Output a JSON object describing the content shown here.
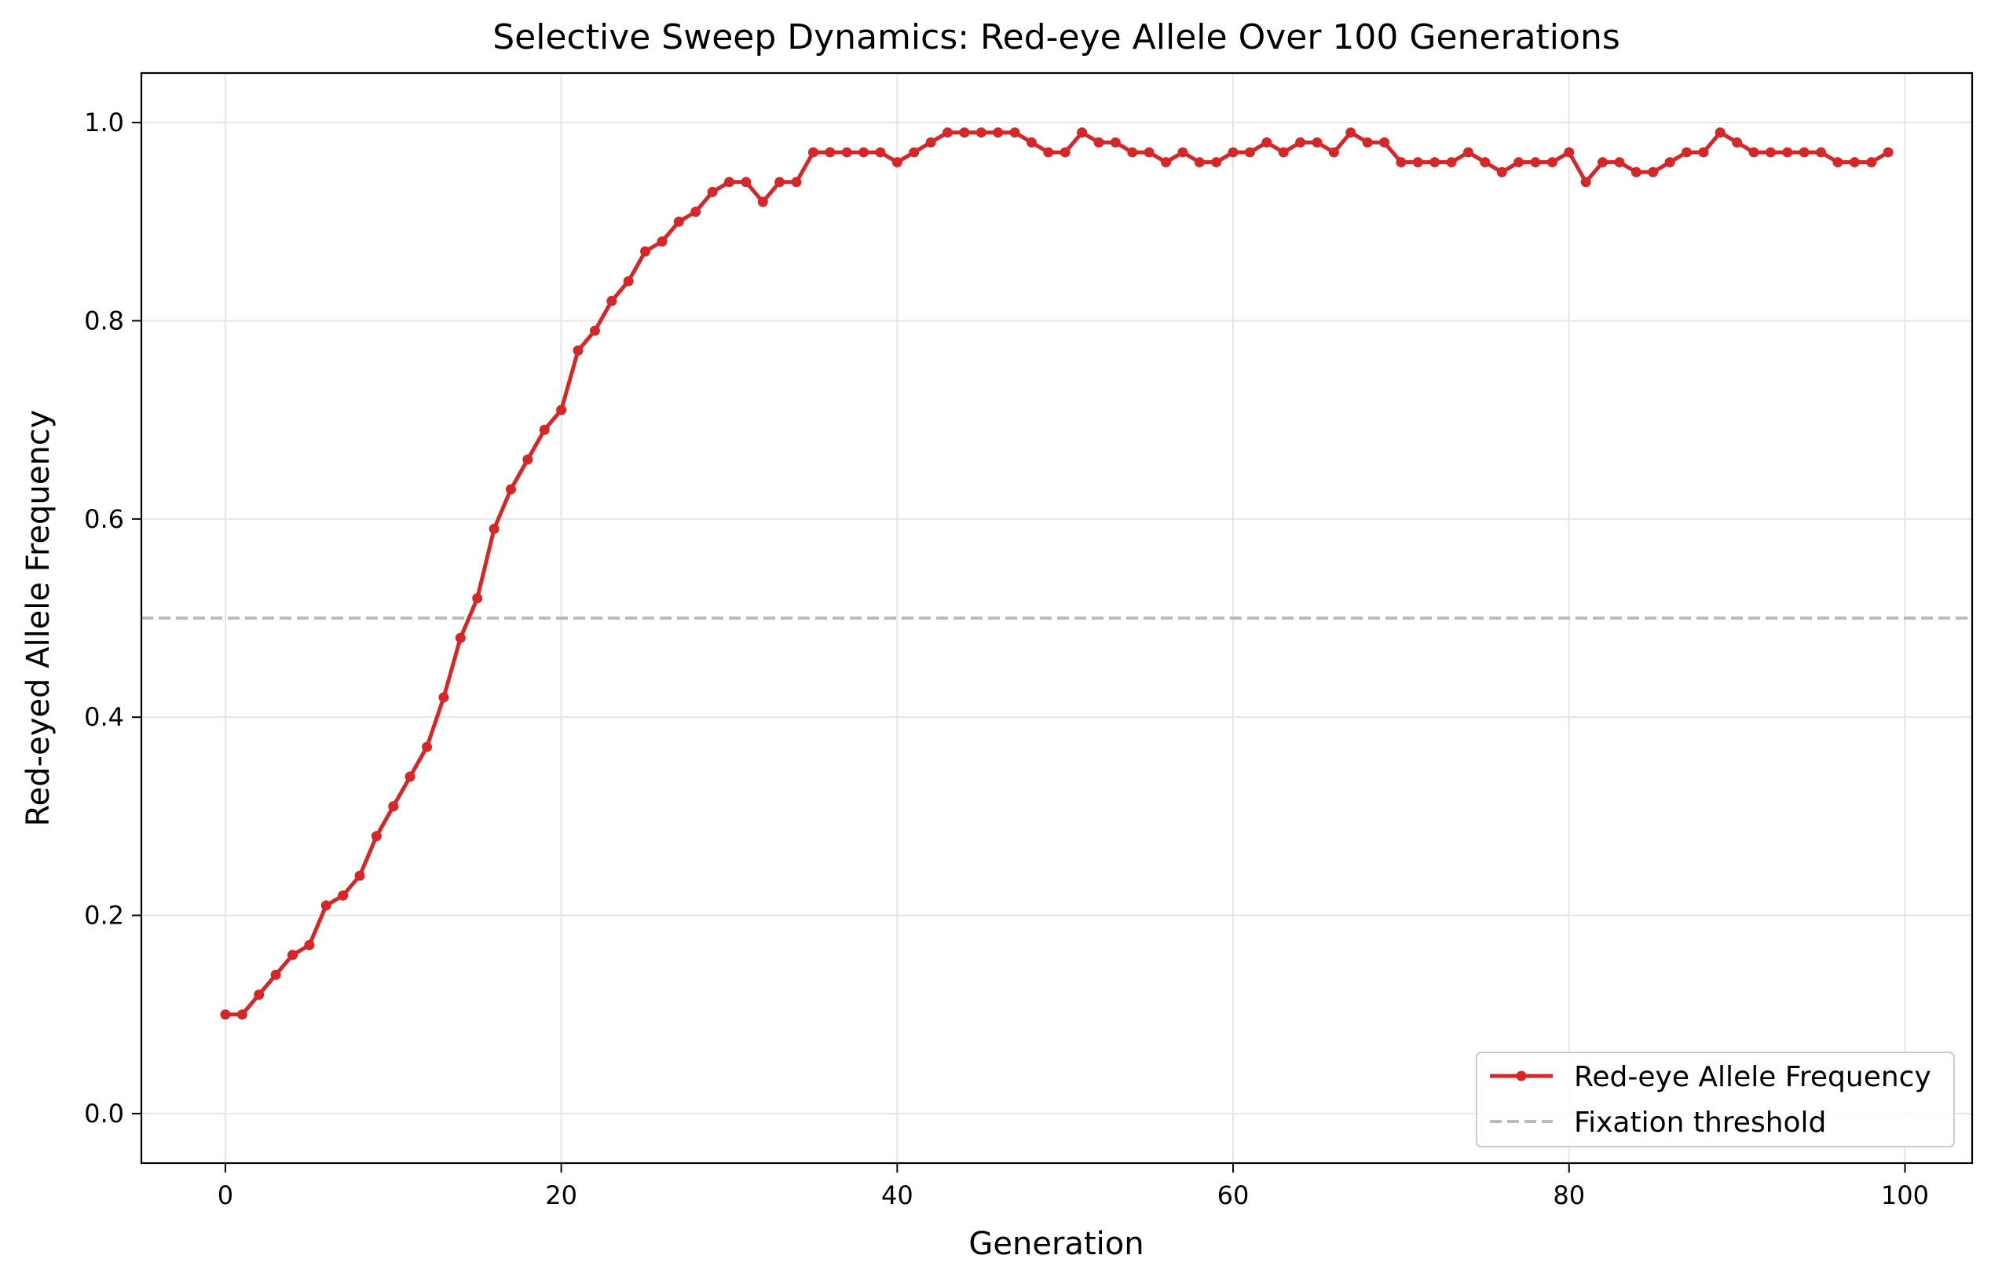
{
  "chart_data": {
    "type": "line",
    "title": "Selective Sweep Dynamics: Red-eye Allele Over 100 Generations",
    "xlabel": "Generation",
    "ylabel": "Red-eyed Allele Frequency",
    "xlim": [
      -5,
      104
    ],
    "ylim": [
      -0.05,
      1.05
    ],
    "x_ticks": [
      0,
      20,
      40,
      60,
      80,
      100
    ],
    "x_tick_labels": [
      "0",
      "20",
      "40",
      "60",
      "80",
      "100"
    ],
    "y_ticks": [
      0.0,
      0.2,
      0.4,
      0.6,
      0.8,
      1.0
    ],
    "y_tick_labels": [
      "0.0",
      "0.2",
      "0.4",
      "0.6",
      "0.8",
      "1.0"
    ],
    "grid": true,
    "legend_position": "lower-right",
    "series": [
      {
        "name": "Red-eye Allele Frequency",
        "color": "#d62728",
        "style": "solid-with-markers",
        "x": [
          0,
          1,
          2,
          3,
          4,
          5,
          6,
          7,
          8,
          9,
          10,
          11,
          12,
          13,
          14,
          15,
          16,
          17,
          18,
          19,
          20,
          21,
          22,
          23,
          24,
          25,
          26,
          27,
          28,
          29,
          30,
          31,
          32,
          33,
          34,
          35,
          36,
          37,
          38,
          39,
          40,
          41,
          42,
          43,
          44,
          45,
          46,
          47,
          48,
          49,
          50,
          51,
          52,
          53,
          54,
          55,
          56,
          57,
          58,
          59,
          60,
          61,
          62,
          63,
          64,
          65,
          66,
          67,
          68,
          69,
          70,
          71,
          72,
          73,
          74,
          75,
          76,
          77,
          78,
          79,
          80,
          81,
          82,
          83,
          84,
          85,
          86,
          87,
          88,
          89,
          90,
          91,
          92,
          93,
          94,
          95,
          96,
          97,
          98,
          99
        ],
        "values": [
          0.1,
          0.1,
          0.12,
          0.14,
          0.16,
          0.17,
          0.21,
          0.22,
          0.24,
          0.28,
          0.31,
          0.34,
          0.37,
          0.42,
          0.48,
          0.52,
          0.59,
          0.63,
          0.66,
          0.69,
          0.71,
          0.77,
          0.79,
          0.82,
          0.84,
          0.87,
          0.88,
          0.9,
          0.91,
          0.93,
          0.94,
          0.94,
          0.92,
          0.94,
          0.94,
          0.97,
          0.97,
          0.97,
          0.97,
          0.97,
          0.96,
          0.97,
          0.98,
          0.99,
          0.99,
          0.99,
          0.99,
          0.99,
          0.98,
          0.97,
          0.97,
          0.99,
          0.98,
          0.98,
          0.97,
          0.97,
          0.96,
          0.97,
          0.96,
          0.96,
          0.97,
          0.97,
          0.98,
          0.97,
          0.98,
          0.98,
          0.97,
          0.99,
          0.98,
          0.98,
          0.96,
          0.96,
          0.96,
          0.96,
          0.97,
          0.96,
          0.95,
          0.96,
          0.96,
          0.96,
          0.97,
          0.94,
          0.96,
          0.96,
          0.95,
          0.95,
          0.96,
          0.97,
          0.97,
          0.99,
          0.98,
          0.97,
          0.97,
          0.97,
          0.97,
          0.97,
          0.96,
          0.96,
          0.96,
          0.97
        ]
      },
      {
        "name": "Fixation threshold",
        "color": "#bbbbbb",
        "style": "dashed-horizontal",
        "y": 0.5
      }
    ]
  }
}
